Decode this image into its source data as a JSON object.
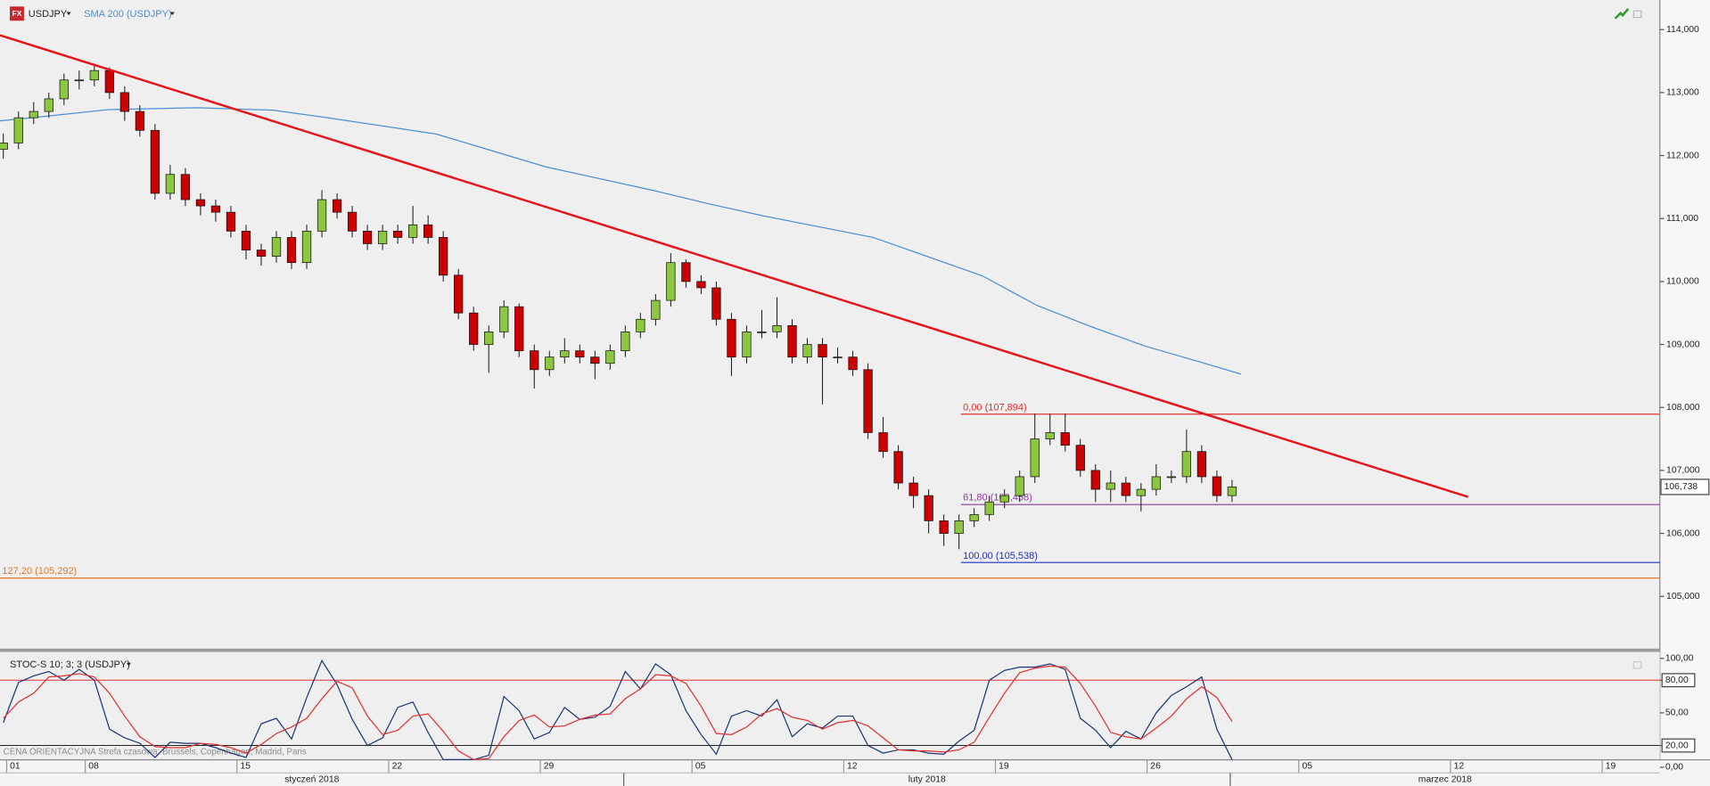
{
  "chart_data": [
    {
      "type": "candlestick",
      "title": "USDJPY",
      "icon": "FX",
      "xlim": [
        2.19,
        56.9
      ],
      "ylim": [
        104.17,
        114.47
      ],
      "yticks": [
        {
          "value": 105,
          "label": "105,000"
        },
        {
          "value": 106,
          "label": "106,000"
        },
        {
          "value": 107,
          "label": "107,000"
        },
        {
          "value": 108,
          "label": "108,000"
        },
        {
          "value": 109,
          "label": "109,000"
        },
        {
          "value": 110,
          "label": "110,000"
        },
        {
          "value": 111,
          "label": "111,000"
        },
        {
          "value": 112,
          "label": "112,000"
        },
        {
          "value": 113,
          "label": "113,000"
        },
        {
          "value": 114,
          "label": "114,000"
        }
      ],
      "x": [
        2.3,
        2.8,
        3.3,
        3.8,
        4.3,
        4.8,
        5.3,
        5.8,
        6.3,
        6.8,
        7.3,
        7.8,
        8.3,
        8.8,
        9.3,
        9.8,
        10.3,
        10.8,
        11.3,
        11.8,
        12.3,
        12.8,
        13.3,
        13.8,
        14.3,
        14.8,
        15.3,
        15.8,
        16.3,
        16.8,
        17.3,
        17.8,
        18.3,
        18.8,
        19.3,
        19.8,
        20.3,
        20.8,
        21.3,
        21.8,
        22.3,
        22.8,
        23.3,
        23.8,
        24.3,
        24.8,
        25.3,
        25.8,
        26.3,
        26.8,
        27.3,
        27.8,
        28.3,
        28.8,
        29.3,
        29.8,
        30.3,
        30.8,
        31.3,
        31.8,
        32.3,
        32.8,
        33.3,
        33.8,
        34.3,
        34.8,
        35.3,
        35.8,
        36.3,
        36.8,
        37.3,
        37.8,
        38.3,
        38.8,
        39.3,
        39.8,
        40.3,
        40.8,
        41.3,
        41.8,
        42.3,
        42.8
      ],
      "open": [
        112.1,
        112.2,
        112.6,
        112.7,
        112.9,
        113.2,
        113.2,
        113.35,
        113.0,
        112.7,
        112.4,
        111.4,
        111.7,
        111.3,
        111.2,
        111.1,
        110.8,
        110.5,
        110.4,
        110.7,
        110.3,
        110.8,
        111.3,
        111.1,
        110.8,
        110.6,
        110.8,
        110.7,
        110.9,
        110.7,
        110.1,
        109.5,
        109.0,
        109.2,
        109.6,
        108.9,
        108.6,
        108.8,
        108.9,
        108.8,
        108.7,
        108.9,
        109.2,
        109.4,
        109.7,
        110.3,
        110.0,
        109.9,
        109.4,
        108.8,
        109.2,
        109.2,
        109.3,
        108.8,
        109.0,
        108.8,
        108.8,
        108.6,
        107.6,
        107.3,
        106.8,
        106.6,
        106.2,
        106.0,
        106.2,
        106.3,
        106.5,
        106.6,
        106.9,
        107.5,
        107.6,
        107.4,
        107.0,
        106.7,
        106.8,
        106.6,
        106.7,
        106.9,
        106.9,
        107.3,
        106.9,
        106.6
      ],
      "high": [
        112.35,
        112.7,
        112.85,
        113.0,
        113.3,
        113.35,
        113.45,
        113.4,
        113.1,
        112.8,
        112.5,
        111.85,
        111.8,
        111.4,
        111.3,
        111.2,
        110.9,
        110.6,
        110.8,
        110.8,
        110.9,
        111.45,
        111.4,
        111.2,
        110.9,
        110.9,
        110.9,
        111.2,
        111.05,
        110.8,
        110.2,
        109.6,
        109.3,
        109.7,
        109.65,
        109.0,
        108.9,
        109.1,
        109.0,
        108.9,
        109.0,
        109.3,
        109.5,
        109.8,
        110.45,
        110.35,
        110.1,
        110.0,
        109.5,
        109.3,
        109.55,
        109.75,
        109.4,
        109.1,
        109.1,
        108.95,
        108.9,
        108.7,
        107.85,
        107.4,
        106.9,
        106.7,
        106.3,
        106.3,
        106.4,
        106.6,
        106.7,
        107.0,
        107.9,
        107.9,
        107.9,
        107.5,
        107.1,
        107.0,
        106.9,
        106.8,
        107.1,
        107.0,
        107.65,
        107.4,
        107.0,
        106.85
      ],
      "low": [
        111.95,
        112.1,
        112.5,
        112.6,
        112.8,
        113.05,
        113.1,
        112.9,
        112.55,
        112.3,
        111.3,
        111.3,
        111.2,
        111.05,
        110.95,
        110.7,
        110.35,
        110.25,
        110.3,
        110.2,
        110.2,
        110.7,
        111.0,
        110.7,
        110.5,
        110.5,
        110.6,
        110.6,
        110.6,
        110.0,
        109.4,
        108.9,
        108.55,
        109.1,
        108.8,
        108.3,
        108.5,
        108.7,
        108.7,
        108.45,
        108.6,
        108.8,
        109.1,
        109.3,
        109.6,
        109.9,
        109.8,
        109.3,
        108.5,
        108.7,
        109.1,
        109.1,
        108.7,
        108.7,
        108.05,
        108.7,
        108.5,
        107.5,
        107.2,
        106.7,
        106.4,
        106.0,
        105.8,
        105.75,
        106.1,
        106.2,
        106.4,
        106.5,
        106.8,
        107.4,
        107.3,
        106.9,
        106.5,
        106.5,
        106.5,
        106.35,
        106.6,
        106.8,
        106.8,
        106.8,
        106.5,
        106.5
      ],
      "close": [
        112.2,
        112.6,
        112.7,
        112.9,
        113.2,
        113.2,
        113.35,
        113.0,
        112.7,
        112.4,
        111.4,
        111.7,
        111.3,
        111.2,
        111.1,
        110.8,
        110.5,
        110.4,
        110.7,
        110.3,
        110.8,
        111.3,
        111.1,
        110.8,
        110.6,
        110.8,
        110.7,
        110.9,
        110.7,
        110.1,
        109.5,
        109.0,
        109.2,
        109.6,
        108.9,
        108.6,
        108.8,
        108.9,
        108.8,
        108.7,
        108.9,
        109.2,
        109.4,
        109.7,
        110.3,
        110.0,
        109.9,
        109.4,
        108.8,
        109.2,
        109.2,
        109.3,
        108.8,
        109.0,
        108.8,
        108.8,
        108.6,
        107.6,
        107.3,
        106.8,
        106.6,
        106.2,
        106.0,
        106.2,
        106.3,
        106.5,
        106.6,
        106.9,
        107.5,
        107.6,
        107.4,
        107.0,
        106.7,
        106.8,
        106.6,
        106.7,
        106.9,
        106.9,
        107.3,
        106.9,
        106.6,
        106.738
      ],
      "up_color": "#8dc63f",
      "down_color": "#cc0000",
      "sma": {
        "name": "SMA 200 (USDJPY)",
        "color": "#4a8fd4",
        "x": [
          2.19,
          3.63,
          5.79,
          8.67,
          11.19,
          12.99,
          16.58,
          18.38,
          20.18,
          23.78,
          25.58,
          27.37,
          30.97,
          34.57,
          36.37,
          38.17,
          39.96,
          41.76,
          43.09
        ],
        "values": [
          112.55,
          112.62,
          112.73,
          112.76,
          112.72,
          112.6,
          112.34,
          112.08,
          111.82,
          111.44,
          111.23,
          111.04,
          110.7,
          110.09,
          109.62,
          109.28,
          108.97,
          108.72,
          108.53
        ]
      },
      "trendline": {
        "color": "#e8141c",
        "x": [
          2.19,
          50.58
        ],
        "values": [
          113.91,
          106.58
        ]
      },
      "levels": [
        {
          "value": 107.894,
          "label": "0,00 (107,894)",
          "color": "#e03030",
          "x_start": 33.86
        },
        {
          "value": 106.458,
          "label": "61,80 (106,458)",
          "color": "#8a3aa0",
          "x_start": 33.86
        },
        {
          "value": 105.538,
          "label": "100,00 (105,538)",
          "color": "#1f2fbf",
          "x_start": 33.86
        },
        {
          "value": 105.292,
          "label": "127,20 (105,292)",
          "color": "#e0782a",
          "x_start": 2.19
        }
      ],
      "last_price": {
        "value": 106.738,
        "label": "106,738"
      }
    },
    {
      "type": "line",
      "title": "STOC-S 10; 3; 3 (USDJPY)",
      "note": "CENA ORIENTACYJNA   Strefa czasowa: Brussels, Copenhagen, Madrid, Paris",
      "ylim": [
        -6.8,
        107
      ],
      "yticks": [
        {
          "value": 0,
          "label": "0,00"
        },
        {
          "value": 20,
          "label": "20,00"
        },
        {
          "value": 50,
          "label": "50,00"
        },
        {
          "value": 80,
          "label": "80,00"
        },
        {
          "value": 100,
          "label": "100,00"
        }
      ],
      "levels": [
        {
          "value": 80,
          "color": "#e03030"
        },
        {
          "value": 20,
          "color": "#222222"
        }
      ],
      "series": [
        {
          "color": "#1c3573",
          "values": [
            41,
            78,
            84,
            88,
            80,
            90,
            80,
            35,
            27,
            22,
            9,
            23,
            22,
            22,
            18,
            13,
            9,
            40,
            45,
            26,
            64,
            98,
            76,
            44,
            20,
            27,
            55,
            60,
            32,
            7,
            7,
            7,
            11,
            65,
            52,
            26,
            32,
            55,
            44,
            46,
            56,
            88,
            72,
            95,
            85,
            52,
            30,
            12,
            47,
            52,
            47,
            62,
            28,
            40,
            36,
            47,
            47,
            20,
            13,
            16,
            16,
            13,
            12,
            24,
            34,
            80,
            89,
            92,
            92,
            95,
            90,
            45,
            34,
            18,
            33,
            26,
            50,
            66,
            74,
            83,
            35,
            7
          ]
        },
        {
          "color": "#e03030",
          "values": [
            45,
            60,
            68,
            83,
            84,
            86,
            83,
            68,
            47,
            28,
            19,
            18,
            18,
            22,
            21,
            18,
            13,
            21,
            31,
            37,
            45,
            63,
            79,
            73,
            47,
            30,
            34,
            47,
            49,
            33,
            15,
            7,
            8,
            28,
            43,
            48,
            37,
            38,
            44,
            48,
            49,
            63,
            72,
            85,
            84,
            77,
            56,
            31,
            30,
            37,
            49,
            54,
            46,
            43,
            35,
            41,
            43,
            38,
            27,
            16,
            15,
            15,
            14,
            16,
            23,
            46,
            68,
            87,
            91,
            93,
            92,
            77,
            56,
            32,
            28,
            26,
            36,
            47,
            63,
            74,
            64,
            42
          ]
        }
      ],
      "xticks": [
        {
          "value": 2.41,
          "label": "01"
        },
        {
          "value": 5,
          "label": "08"
        },
        {
          "value": 10,
          "label": "15"
        },
        {
          "value": 15,
          "label": "22"
        },
        {
          "value": 20,
          "label": "29"
        },
        {
          "value": 25,
          "label": "05"
        },
        {
          "value": 30,
          "label": "12"
        },
        {
          "value": 35,
          "label": "19"
        },
        {
          "value": 40,
          "label": "26"
        },
        {
          "value": 45,
          "label": "05"
        },
        {
          "value": 50,
          "label": "12"
        },
        {
          "value": 55,
          "label": "19"
        }
      ],
      "months": [
        "styczeń 2018",
        "luty 2018",
        "marzec 2018"
      ],
      "month_breaks": [
        22.75,
        42.74
      ]
    }
  ]
}
